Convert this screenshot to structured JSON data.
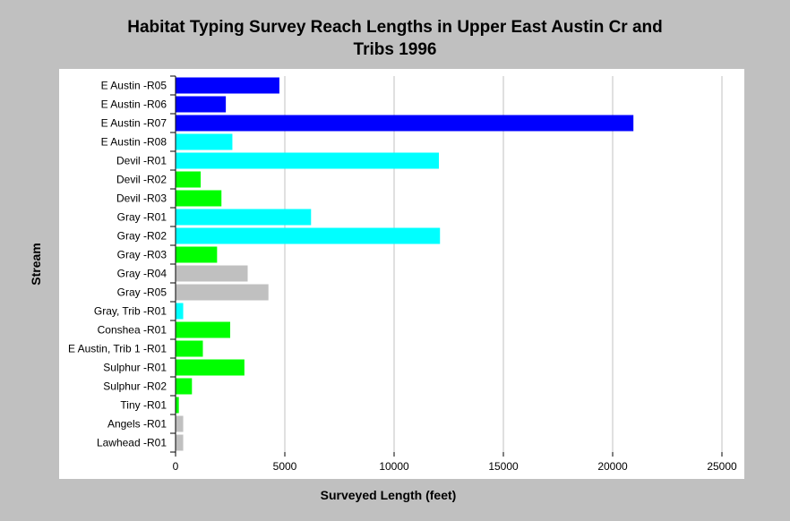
{
  "chart_data": {
    "type": "bar",
    "orientation": "horizontal",
    "title_line1": "Habitat Typing Survey Reach Lengths in Upper East Austin Cr and",
    "title_line2": "Tribs 1996",
    "xlabel": "Surveyed Length (feet)",
    "ylabel": "Stream",
    "xlim": [
      0,
      25000
    ],
    "xticks": [
      "0",
      "5000",
      "10000",
      "15000",
      "20000",
      "25000"
    ],
    "grid": "vertical",
    "categories": [
      "E Austin -R05",
      "E Austin -R06",
      "E Austin -R07",
      "E Austin -R08",
      "Devil -R01",
      "Devil -R02",
      "Devil -R03",
      "Gray -R01",
      "Gray -R02",
      "Gray -R03",
      "Gray -R04",
      "Gray -R05",
      "Gray, Trib -R01",
      "Conshea -R01",
      "E Austin, Trib 1 -R01",
      "Sulphur -R01",
      "Sulphur -R02",
      "Tiny -R01",
      "Angels -R01",
      "Lawhead -R01"
    ],
    "values": [
      4750,
      2300,
      20950,
      2600,
      12050,
      1150,
      2100,
      6200,
      12100,
      1900,
      3300,
      4250,
      350,
      2500,
      1250,
      3150,
      750,
      150,
      350,
      350
    ],
    "bar_colors": [
      "#0000ff",
      "#0000ff",
      "#0000ff",
      "#00ffff",
      "#00ffff",
      "#00ff00",
      "#00ff00",
      "#00ffff",
      "#00ffff",
      "#00ff00",
      "#c0c0c0",
      "#c0c0c0",
      "#00ffff",
      "#00ff00",
      "#00ff00",
      "#00ff00",
      "#00ff00",
      "#00ff00",
      "#c0c0c0",
      "#c0c0c0"
    ],
    "colors": {
      "background": "#c0c0c0",
      "plot_background": "#ffffff",
      "grid": "#c0c0c0"
    }
  }
}
